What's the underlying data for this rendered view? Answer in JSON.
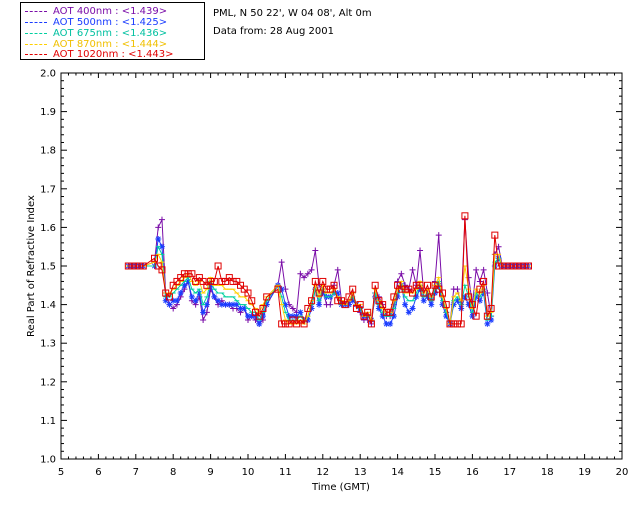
{
  "info": {
    "site": "PML, N 50 22', W 04 08', Alt 0m",
    "date": "Data from: 28 Aug 2001"
  },
  "colors": {
    "aot400": "#7a0da8",
    "aot500": "#1a3cff",
    "aot675": "#00d0a0",
    "aot870": "#ffd000",
    "aot1020": "#e00000"
  },
  "chart_data": {
    "type": "line",
    "xlabel": "Time (GMT)",
    "ylabel": "Real Part of Refractive Index",
    "xlim": [
      5,
      20
    ],
    "ylim": [
      1.0,
      2.0
    ],
    "xticks": [
      "5",
      "6",
      "7",
      "8",
      "9",
      "10",
      "11",
      "12",
      "13",
      "14",
      "15",
      "16",
      "17",
      "18",
      "19",
      "20"
    ],
    "yticks": [
      "1.0",
      "1.1",
      "1.2",
      "1.3",
      "1.4",
      "1.5",
      "1.6",
      "1.7",
      "1.8",
      "1.9",
      "2.0"
    ],
    "grid": false,
    "legend_position": "top-left",
    "series": [
      {
        "name": "AOT 400nm : <1.439>",
        "color": "#7a0da8",
        "marker": "plus",
        "x": [
          6.8,
          6.9,
          7.0,
          7.1,
          7.2,
          7.5,
          7.6,
          7.7,
          7.8,
          7.9,
          8.0,
          8.1,
          8.2,
          8.3,
          8.4,
          8.5,
          8.6,
          8.7,
          8.8,
          8.9,
          9.0,
          9.1,
          9.2,
          9.3,
          9.4,
          9.5,
          9.6,
          9.7,
          9.8,
          9.9,
          10.0,
          10.1,
          10.2,
          10.3,
          10.4,
          10.5,
          10.8,
          10.9,
          11.0,
          11.1,
          11.2,
          11.3,
          11.4,
          11.5,
          11.6,
          11.7,
          11.8,
          11.9,
          12.0,
          12.1,
          12.2,
          12.3,
          12.4,
          12.5,
          12.6,
          12.7,
          12.8,
          12.9,
          13.0,
          13.1,
          13.2,
          13.3,
          13.4,
          13.5,
          13.6,
          13.7,
          13.8,
          13.9,
          14.0,
          14.1,
          14.2,
          14.3,
          14.4,
          14.5,
          14.6,
          14.7,
          14.8,
          14.9,
          15.0,
          15.1,
          15.2,
          15.3,
          15.4,
          15.5,
          15.6,
          15.7,
          15.8,
          15.9,
          16.0,
          16.1,
          16.2,
          16.3,
          16.4,
          16.5,
          16.6,
          16.7,
          16.8,
          16.9,
          17.0,
          17.1,
          17.2,
          17.3,
          17.4,
          17.5
        ],
        "y": [
          1.5,
          1.5,
          1.5,
          1.5,
          1.5,
          1.51,
          1.6,
          1.62,
          1.43,
          1.4,
          1.39,
          1.4,
          1.42,
          1.44,
          1.46,
          1.41,
          1.4,
          1.42,
          1.36,
          1.38,
          1.44,
          1.42,
          1.4,
          1.41,
          1.4,
          1.4,
          1.39,
          1.39,
          1.38,
          1.39,
          1.36,
          1.37,
          1.36,
          1.35,
          1.36,
          1.4,
          1.45,
          1.51,
          1.44,
          1.4,
          1.39,
          1.38,
          1.48,
          1.47,
          1.48,
          1.49,
          1.54,
          1.45,
          1.44,
          1.4,
          1.4,
          1.45,
          1.49,
          1.41,
          1.4,
          1.4,
          1.43,
          1.4,
          1.38,
          1.36,
          1.36,
          1.35,
          1.43,
          1.42,
          1.4,
          1.37,
          1.37,
          1.4,
          1.46,
          1.48,
          1.45,
          1.44,
          1.49,
          1.45,
          1.54,
          1.43,
          1.43,
          1.41,
          1.46,
          1.58,
          1.42,
          1.38,
          1.35,
          1.44,
          1.44,
          1.4,
          1.62,
          1.47,
          1.4,
          1.49,
          1.46,
          1.49,
          1.43,
          1.37,
          1.53,
          1.55,
          1.5,
          1.5,
          1.5,
          1.5,
          1.5,
          1.5,
          1.5,
          1.5
        ]
      },
      {
        "name": "AOT 500nm : <1.425>",
        "color": "#1a3cff",
        "marker": "asterisk",
        "x": [
          6.8,
          6.9,
          7.0,
          7.1,
          7.2,
          7.5,
          7.6,
          7.7,
          7.8,
          7.9,
          8.0,
          8.1,
          8.2,
          8.3,
          8.4,
          8.5,
          8.6,
          8.7,
          8.8,
          8.9,
          9.0,
          9.1,
          9.2,
          9.3,
          9.4,
          9.5,
          9.6,
          9.7,
          9.8,
          9.9,
          10.0,
          10.1,
          10.2,
          10.3,
          10.4,
          10.5,
          10.8,
          10.9,
          11.0,
          11.1,
          11.2,
          11.3,
          11.4,
          11.5,
          11.6,
          11.7,
          11.8,
          11.9,
          12.0,
          12.1,
          12.2,
          12.3,
          12.4,
          12.5,
          12.6,
          12.7,
          12.8,
          12.9,
          13.0,
          13.1,
          13.2,
          13.3,
          13.4,
          13.5,
          13.6,
          13.7,
          13.8,
          13.9,
          14.0,
          14.1,
          14.2,
          14.3,
          14.4,
          14.5,
          14.6,
          14.7,
          14.8,
          14.9,
          15.0,
          15.1,
          15.2,
          15.3,
          15.4,
          15.5,
          15.6,
          15.7,
          15.8,
          15.9,
          16.0,
          16.1,
          16.2,
          16.3,
          16.4,
          16.5,
          16.6,
          16.7,
          16.8,
          16.9,
          17.0,
          17.1,
          17.2,
          17.3,
          17.4,
          17.5
        ],
        "y": [
          1.5,
          1.5,
          1.5,
          1.5,
          1.5,
          1.5,
          1.57,
          1.55,
          1.41,
          1.4,
          1.41,
          1.41,
          1.43,
          1.45,
          1.46,
          1.42,
          1.41,
          1.43,
          1.38,
          1.4,
          1.45,
          1.42,
          1.41,
          1.4,
          1.4,
          1.4,
          1.4,
          1.4,
          1.39,
          1.39,
          1.37,
          1.37,
          1.37,
          1.35,
          1.37,
          1.4,
          1.45,
          1.44,
          1.4,
          1.37,
          1.37,
          1.37,
          1.38,
          1.36,
          1.36,
          1.39,
          1.44,
          1.4,
          1.43,
          1.42,
          1.42,
          1.43,
          1.43,
          1.4,
          1.4,
          1.4,
          1.41,
          1.4,
          1.39,
          1.37,
          1.37,
          1.36,
          1.42,
          1.39,
          1.37,
          1.35,
          1.35,
          1.37,
          1.42,
          1.45,
          1.4,
          1.38,
          1.39,
          1.42,
          1.44,
          1.41,
          1.42,
          1.4,
          1.43,
          1.45,
          1.4,
          1.37,
          1.35,
          1.4,
          1.41,
          1.39,
          1.42,
          1.4,
          1.37,
          1.42,
          1.41,
          1.43,
          1.35,
          1.36,
          1.5,
          1.52,
          1.5,
          1.5,
          1.5,
          1.5,
          1.5,
          1.5,
          1.5,
          1.5
        ]
      },
      {
        "name": "AOT 675nm : <1.436>",
        "color": "#00d0a0",
        "marker": "dash",
        "x": [
          6.8,
          6.9,
          7.0,
          7.1,
          7.2,
          7.5,
          7.6,
          7.7,
          7.8,
          7.9,
          8.0,
          8.1,
          8.2,
          8.3,
          8.4,
          8.5,
          8.6,
          8.7,
          8.8,
          8.9,
          9.0,
          9.1,
          9.2,
          9.3,
          9.4,
          9.5,
          9.6,
          9.7,
          9.8,
          9.9,
          10.0,
          10.1,
          10.2,
          10.3,
          10.4,
          10.5,
          10.8,
          10.9,
          11.0,
          11.1,
          11.2,
          11.3,
          11.4,
          11.5,
          11.6,
          11.7,
          11.8,
          11.9,
          12.0,
          12.1,
          12.2,
          12.3,
          12.4,
          12.5,
          12.6,
          12.7,
          12.8,
          12.9,
          13.0,
          13.1,
          13.2,
          13.3,
          13.4,
          13.5,
          13.6,
          13.7,
          13.8,
          13.9,
          14.0,
          14.1,
          14.2,
          14.3,
          14.4,
          14.5,
          14.6,
          14.7,
          14.8,
          14.9,
          15.0,
          15.1,
          15.2,
          15.3,
          15.4,
          15.5,
          15.6,
          15.7,
          15.8,
          15.9,
          16.0,
          16.1,
          16.2,
          16.3,
          16.4,
          16.5,
          16.6,
          16.7,
          16.8,
          16.9,
          17.0,
          17.1,
          17.2,
          17.3,
          17.4,
          17.5
        ],
        "y": [
          1.5,
          1.5,
          1.5,
          1.5,
          1.5,
          1.5,
          1.55,
          1.53,
          1.42,
          1.42,
          1.43,
          1.44,
          1.45,
          1.46,
          1.47,
          1.44,
          1.43,
          1.44,
          1.4,
          1.42,
          1.46,
          1.44,
          1.43,
          1.43,
          1.42,
          1.42,
          1.42,
          1.41,
          1.4,
          1.4,
          1.39,
          1.38,
          1.38,
          1.36,
          1.38,
          1.41,
          1.45,
          1.42,
          1.38,
          1.36,
          1.36,
          1.36,
          1.37,
          1.36,
          1.37,
          1.4,
          1.44,
          1.41,
          1.44,
          1.42,
          1.42,
          1.43,
          1.42,
          1.4,
          1.4,
          1.41,
          1.42,
          1.4,
          1.39,
          1.37,
          1.37,
          1.36,
          1.43,
          1.4,
          1.38,
          1.37,
          1.37,
          1.39,
          1.43,
          1.45,
          1.42,
          1.41,
          1.41,
          1.43,
          1.45,
          1.42,
          1.43,
          1.41,
          1.44,
          1.46,
          1.41,
          1.38,
          1.35,
          1.41,
          1.42,
          1.4,
          1.45,
          1.42,
          1.38,
          1.43,
          1.42,
          1.44,
          1.36,
          1.37,
          1.51,
          1.52,
          1.5,
          1.5,
          1.5,
          1.5,
          1.5,
          1.5,
          1.5,
          1.5
        ]
      },
      {
        "name": "AOT 870nm : <1.444>",
        "color": "#ffd000",
        "marker": "dash",
        "x": [
          6.8,
          6.9,
          7.0,
          7.1,
          7.2,
          7.5,
          7.6,
          7.7,
          7.8,
          7.9,
          8.0,
          8.1,
          8.2,
          8.3,
          8.4,
          8.5,
          8.6,
          8.7,
          8.8,
          8.9,
          9.0,
          9.1,
          9.2,
          9.3,
          9.4,
          9.5,
          9.6,
          9.7,
          9.8,
          9.9,
          10.0,
          10.1,
          10.2,
          10.3,
          10.4,
          10.5,
          10.8,
          10.9,
          11.0,
          11.1,
          11.2,
          11.3,
          11.4,
          11.5,
          11.6,
          11.7,
          11.8,
          11.9,
          12.0,
          12.1,
          12.2,
          12.3,
          12.4,
          12.5,
          12.6,
          12.7,
          12.8,
          12.9,
          13.0,
          13.1,
          13.2,
          13.3,
          13.4,
          13.5,
          13.6,
          13.7,
          13.8,
          13.9,
          14.0,
          14.1,
          14.2,
          14.3,
          14.4,
          14.5,
          14.6,
          14.7,
          14.8,
          14.9,
          15.0,
          15.1,
          15.2,
          15.3,
          15.4,
          15.5,
          15.6,
          15.7,
          15.8,
          15.9,
          16.0,
          16.1,
          16.2,
          16.3,
          16.4,
          16.5,
          16.6,
          16.7,
          16.8,
          16.9,
          17.0,
          17.1,
          17.2,
          17.3,
          17.4,
          17.5
        ],
        "y": [
          1.5,
          1.5,
          1.5,
          1.5,
          1.5,
          1.51,
          1.53,
          1.51,
          1.43,
          1.43,
          1.44,
          1.45,
          1.46,
          1.47,
          1.48,
          1.46,
          1.45,
          1.46,
          1.43,
          1.44,
          1.47,
          1.45,
          1.45,
          1.45,
          1.44,
          1.44,
          1.44,
          1.43,
          1.42,
          1.42,
          1.41,
          1.4,
          1.39,
          1.38,
          1.4,
          1.42,
          1.45,
          1.4,
          1.36,
          1.35,
          1.35,
          1.35,
          1.36,
          1.35,
          1.37,
          1.41,
          1.45,
          1.42,
          1.45,
          1.43,
          1.43,
          1.44,
          1.42,
          1.41,
          1.4,
          1.41,
          1.43,
          1.4,
          1.4,
          1.37,
          1.38,
          1.36,
          1.44,
          1.41,
          1.39,
          1.38,
          1.38,
          1.41,
          1.44,
          1.46,
          1.43,
          1.43,
          1.43,
          1.44,
          1.46,
          1.43,
          1.44,
          1.42,
          1.45,
          1.47,
          1.42,
          1.39,
          1.35,
          1.42,
          1.43,
          1.41,
          1.5,
          1.44,
          1.39,
          1.44,
          1.43,
          1.45,
          1.37,
          1.38,
          1.53,
          1.53,
          1.5,
          1.5,
          1.5,
          1.5,
          1.5,
          1.5,
          1.5,
          1.5
        ]
      },
      {
        "name": "AOT 1020nm : <1.443>",
        "color": "#e00000",
        "marker": "square",
        "x": [
          6.8,
          6.9,
          7.0,
          7.1,
          7.2,
          7.5,
          7.6,
          7.7,
          7.8,
          7.9,
          8.0,
          8.1,
          8.2,
          8.3,
          8.4,
          8.5,
          8.6,
          8.7,
          8.8,
          8.9,
          9.0,
          9.1,
          9.2,
          9.3,
          9.4,
          9.5,
          9.6,
          9.7,
          9.8,
          9.9,
          10.0,
          10.1,
          10.2,
          10.3,
          10.4,
          10.5,
          10.8,
          10.9,
          11.0,
          11.1,
          11.2,
          11.3,
          11.4,
          11.5,
          11.6,
          11.7,
          11.8,
          11.9,
          12.0,
          12.1,
          12.2,
          12.3,
          12.4,
          12.5,
          12.6,
          12.7,
          12.8,
          12.9,
          13.0,
          13.1,
          13.2,
          13.3,
          13.4,
          13.5,
          13.6,
          13.7,
          13.8,
          13.9,
          14.0,
          14.1,
          14.2,
          14.3,
          14.4,
          14.5,
          14.6,
          14.7,
          14.8,
          14.9,
          15.0,
          15.1,
          15.2,
          15.3,
          15.4,
          15.5,
          15.6,
          15.7,
          15.8,
          15.9,
          16.0,
          16.1,
          16.2,
          16.3,
          16.4,
          16.5,
          16.6,
          16.7,
          16.8,
          16.9,
          17.0,
          17.1,
          17.2,
          17.3,
          17.4,
          17.5
        ],
        "y": [
          1.5,
          1.5,
          1.5,
          1.5,
          1.5,
          1.52,
          1.5,
          1.49,
          1.43,
          1.42,
          1.45,
          1.46,
          1.47,
          1.48,
          1.48,
          1.48,
          1.46,
          1.47,
          1.46,
          1.45,
          1.46,
          1.46,
          1.5,
          1.46,
          1.46,
          1.47,
          1.46,
          1.46,
          1.45,
          1.44,
          1.43,
          1.41,
          1.38,
          1.37,
          1.39,
          1.42,
          1.44,
          1.35,
          1.35,
          1.35,
          1.36,
          1.35,
          1.36,
          1.35,
          1.39,
          1.41,
          1.46,
          1.43,
          1.46,
          1.44,
          1.44,
          1.45,
          1.41,
          1.41,
          1.4,
          1.42,
          1.44,
          1.39,
          1.4,
          1.37,
          1.38,
          1.35,
          1.45,
          1.41,
          1.4,
          1.38,
          1.38,
          1.42,
          1.45,
          1.44,
          1.44,
          1.44,
          1.43,
          1.45,
          1.45,
          1.43,
          1.45,
          1.42,
          1.45,
          1.44,
          1.43,
          1.4,
          1.35,
          1.35,
          1.35,
          1.35,
          1.63,
          1.42,
          1.4,
          1.37,
          1.44,
          1.46,
          1.37,
          1.39,
          1.58,
          1.5,
          1.5,
          1.5,
          1.5,
          1.5,
          1.5,
          1.5,
          1.5,
          1.5
        ]
      }
    ]
  }
}
